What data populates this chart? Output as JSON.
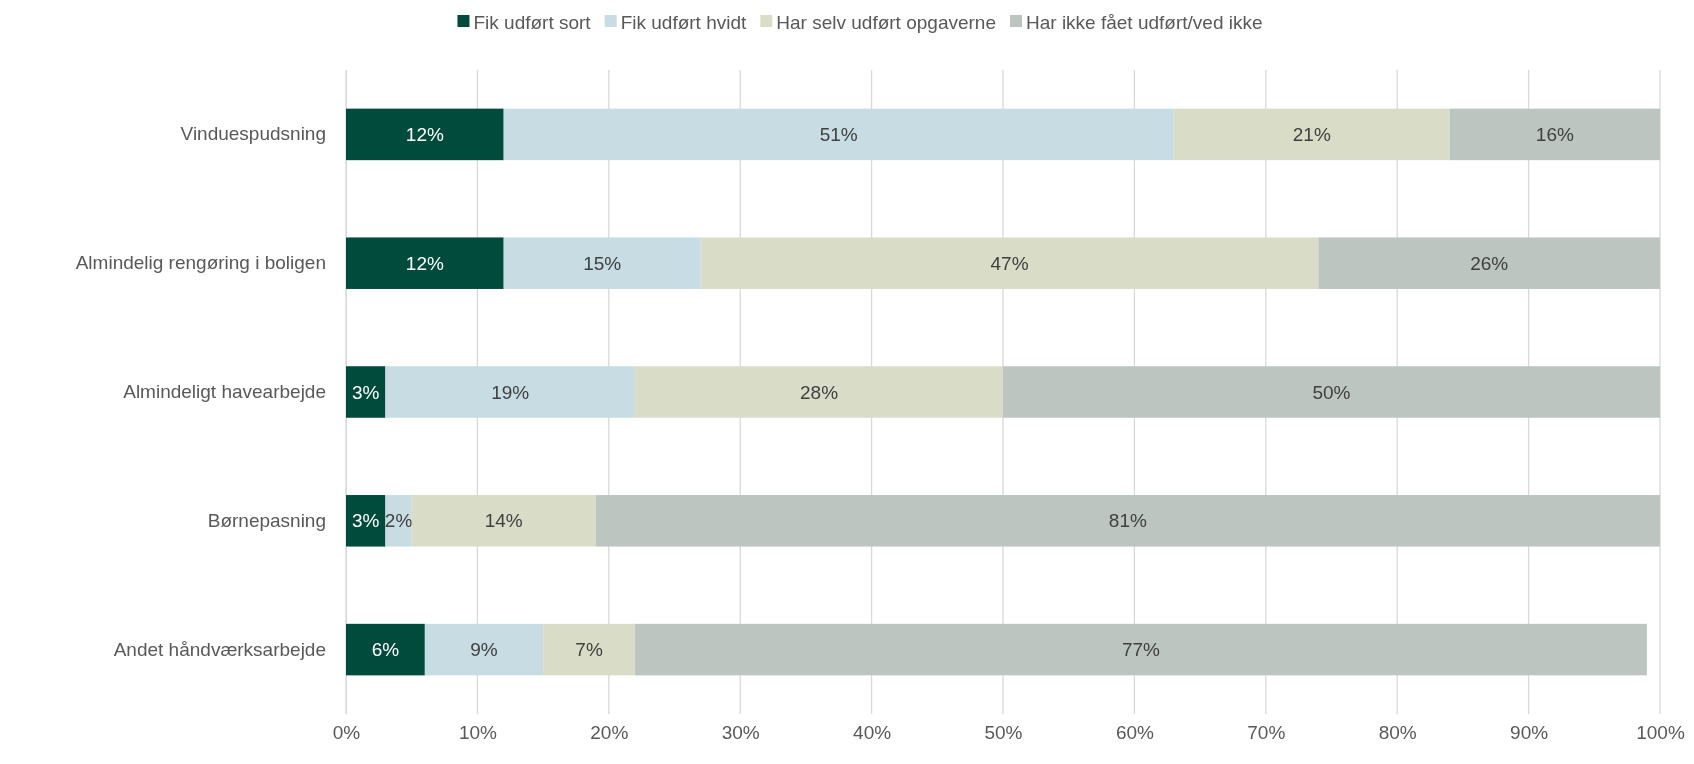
{
  "chart_data": {
    "type": "bar",
    "orientation": "horizontal",
    "stacked": true,
    "categories": [
      "Vinduespudsning",
      "Almindelig rengøring i boligen",
      "Almindeligt havearbejde",
      "Børnepasning",
      "Andet håndværksarbejde"
    ],
    "series": [
      {
        "name": "Fik udført sort",
        "color": "#004b3c",
        "values": [
          12,
          12,
          3,
          3,
          6
        ],
        "value_labels": [
          "12%",
          "12%",
          "3%",
          "3%",
          "6%"
        ]
      },
      {
        "name": "Fik udført hvidt",
        "color": "#c7dce3",
        "values": [
          51,
          15,
          19,
          2,
          9
        ],
        "value_labels": [
          "51%",
          "15%",
          "19%",
          "2%",
          "9%"
        ]
      },
      {
        "name": "Har selv udført opgaverne",
        "color": "#d9ddc8",
        "values": [
          21,
          47,
          28,
          14,
          7
        ],
        "value_labels": [
          "21%",
          "47%",
          "28%",
          "14%",
          "7%"
        ]
      },
      {
        "name": "Har ikke fået udført/ved ikke",
        "color": "#bdc5c0",
        "values": [
          16,
          26,
          50,
          81,
          77
        ],
        "value_labels": [
          "16%",
          "26%",
          "50%",
          "81%",
          "77%"
        ]
      }
    ],
    "xlim": [
      0,
      100
    ],
    "xticks": [
      {
        "value": 0,
        "label": "0%"
      },
      {
        "value": 10,
        "label": "10%"
      },
      {
        "value": 20,
        "label": "20%"
      },
      {
        "value": 30,
        "label": "30%"
      },
      {
        "value": 40,
        "label": "40%"
      },
      {
        "value": 50,
        "label": "50%"
      },
      {
        "value": 60,
        "label": "60%"
      },
      {
        "value": 70,
        "label": "70%"
      },
      {
        "value": 80,
        "label": "80%"
      },
      {
        "value": 90,
        "label": "90%"
      },
      {
        "value": 100,
        "label": "100%"
      }
    ],
    "grid": "x",
    "legend": "top"
  }
}
